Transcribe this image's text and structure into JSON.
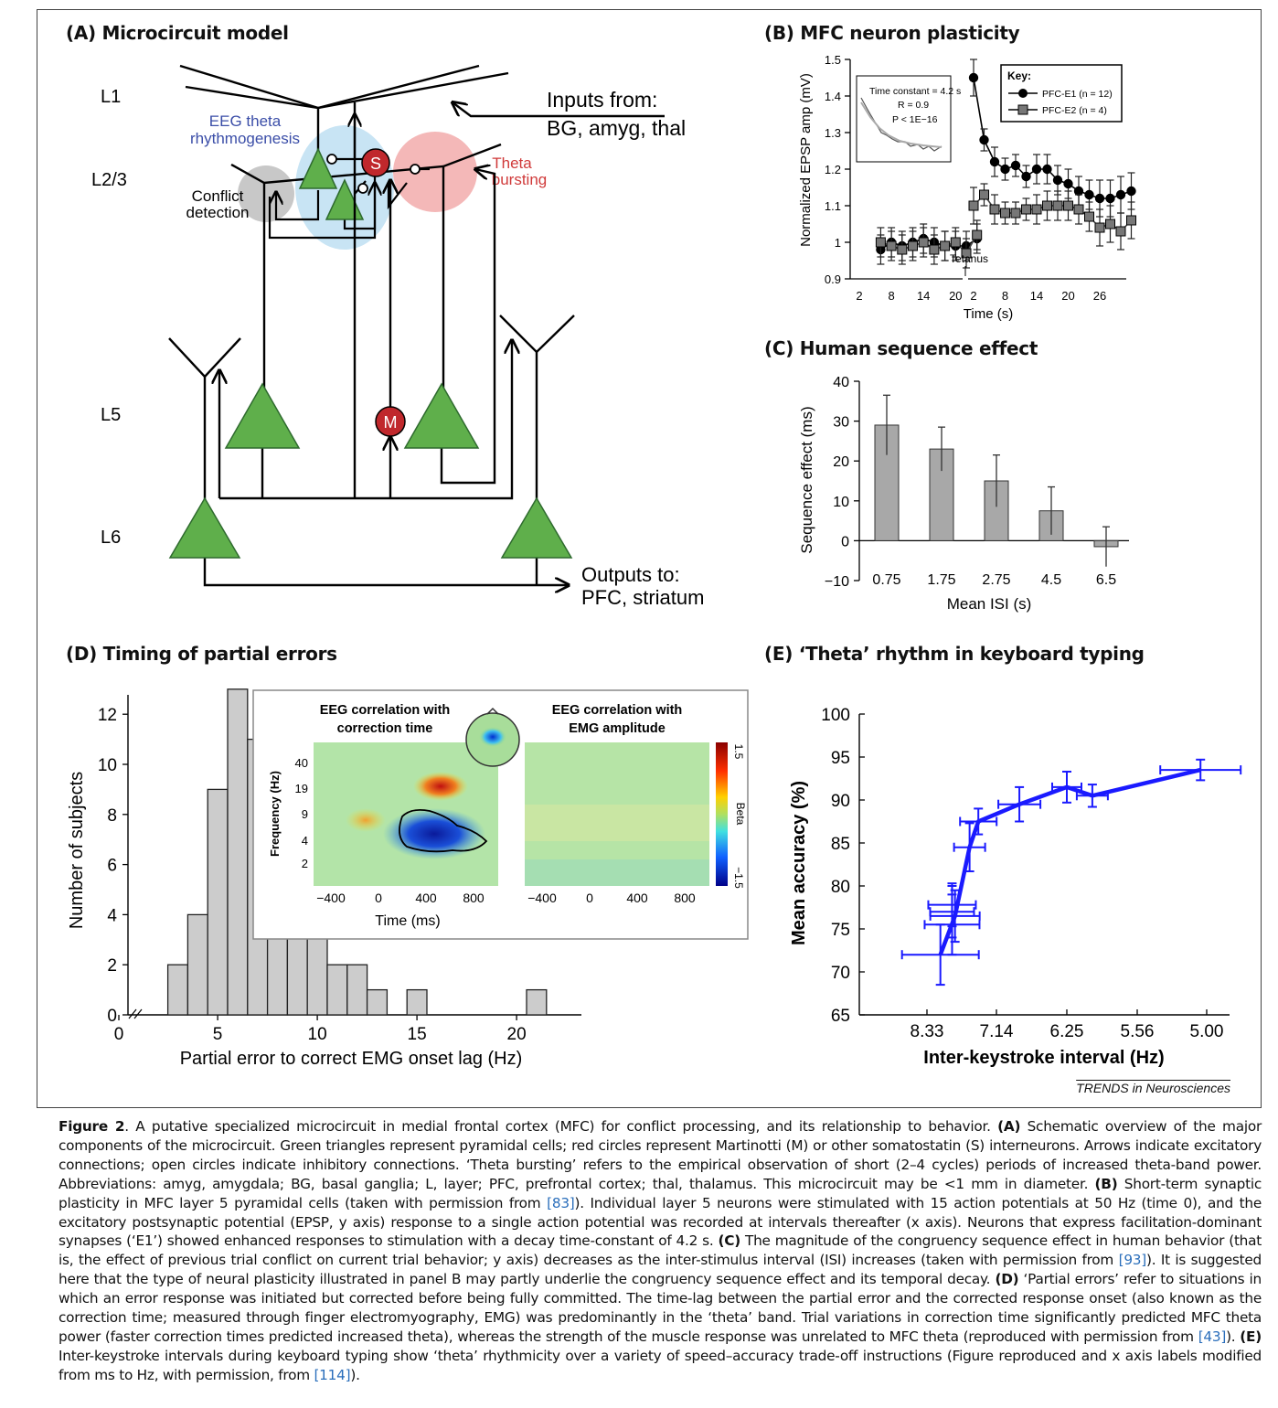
{
  "panels": {
    "a": {
      "title": "(A) Microcircuit model",
      "layers": [
        "L1",
        "L2/3",
        "L5",
        "L6"
      ],
      "inputs_line1": "Inputs from:",
      "inputs_line2": "BG, amyg, thal",
      "eeg_line1": "EEG theta",
      "eeg_line2": "rhythmogenesis",
      "theta_line1": "Theta",
      "theta_line2": "bursting",
      "conflict_line1": "Conflict",
      "conflict_line2": "detection",
      "s_label": "S",
      "m_label": "M",
      "outputs_line1": "Outputs to:",
      "outputs_line2": "PFC, striatum"
    },
    "b": {
      "title": "(B) MFC neuron plasticity"
    },
    "c": {
      "title": "(C) Human sequence effect"
    },
    "d": {
      "title": "(D) Timing of partial errors"
    },
    "e": {
      "title": "(E) ‘Theta’ rhythm in keyboard typing"
    }
  },
  "colors": {
    "pyramidal": "#5faf4b",
    "interneuron": "#c0282c",
    "eeg_region": "#c8e4f4",
    "theta_region": "#f4b8b8",
    "conflict_region": "#c8c8c8",
    "eeg_text": "#3b4ea8",
    "theta_text": "#d03a3a",
    "line_e": "#1a1aff",
    "bar_gray": "#a8a8a8",
    "hist_gray": "#cccccc"
  },
  "chart_data": [
    {
      "id": "B",
      "type": "line",
      "xlabel": "Time (s)",
      "ylabel": "Normalized EPSP amp (mV)",
      "ylim": [
        0.9,
        1.5
      ],
      "yticks": [
        "0.9",
        "1",
        "1.1",
        "1.2",
        "1.3",
        "1.4",
        "1.5"
      ],
      "xticks_pre": [
        "2",
        "8",
        "14",
        "20"
      ],
      "xticks_post": [
        "2",
        "8",
        "14",
        "20",
        "26"
      ],
      "annotation": "Tetanus",
      "legend_title": "Key:",
      "legend": [
        "PFC-E1 (n = 12)",
        "PFC-E2 (n = 4)"
      ],
      "inset_text": [
        "Time constant = 4.2 s",
        "R = 0.9",
        "P < 1E−16"
      ],
      "series": [
        {
          "name": "PFC-E1 (n = 12)",
          "pre": [
            0.98,
            1.0,
            0.99,
            1.0,
            1.01,
            1.0,
            0.99,
            0.99,
            0.99,
            1.01
          ],
          "post": [
            1.45,
            1.28,
            1.22,
            1.2,
            1.21,
            1.18,
            1.2,
            1.2,
            1.17,
            1.16,
            1.14,
            1.13,
            1.12,
            1.12,
            1.13,
            1.14
          ]
        },
        {
          "name": "PFC-E2 (n = 4)",
          "pre": [
            1.0,
            0.99,
            0.98,
            0.99,
            1.0,
            0.98,
            0.99,
            1.0,
            0.97,
            1.02
          ],
          "post": [
            1.1,
            1.13,
            1.09,
            1.08,
            1.08,
            1.09,
            1.09,
            1.1,
            1.1,
            1.1,
            1.09,
            1.07,
            1.04,
            1.05,
            1.03,
            1.06
          ]
        }
      ]
    },
    {
      "id": "C",
      "type": "bar",
      "xlabel": "Mean ISI (s)",
      "ylabel": "Sequence effect (ms)",
      "categories": [
        "0.75",
        "1.75",
        "2.75",
        "4.5",
        "6.5"
      ],
      "values": [
        29,
        23,
        15,
        7.5,
        -1.5
      ],
      "errors": [
        7.5,
        5.5,
        6.5,
        6,
        5
      ],
      "ylim": [
        -10,
        40
      ],
      "yticks": [
        "−10",
        "0",
        "10",
        "20",
        "30",
        "40"
      ]
    },
    {
      "id": "D",
      "type": "bar",
      "xlabel": "Partial error to correct EMG onset lag (Hz)",
      "ylabel": "Number of subjects",
      "bins": [
        3,
        4,
        5,
        6,
        7,
        8,
        9,
        10,
        11,
        12,
        13,
        15,
        21
      ],
      "counts": [
        2,
        4,
        9,
        13,
        11,
        9,
        6,
        4,
        2,
        2,
        1,
        1,
        1
      ],
      "xticks": [
        "0",
        "5",
        "10",
        "15",
        "20"
      ],
      "yticks": [
        "0",
        "2",
        "4",
        "6",
        "8",
        "10",
        "12"
      ]
    },
    {
      "id": "D-inset",
      "type": "heatmap",
      "titles": [
        [
          "EEG correlation with",
          "correction time"
        ],
        [
          "EEG correlation with",
          "EMG amplitude"
        ]
      ],
      "ylabel": "Frequency (Hz)",
      "yticks": [
        "40",
        "19",
        "9",
        "4",
        "2"
      ],
      "xticks": [
        "−400",
        "0",
        "400",
        "800"
      ],
      "xlabel": "Time (ms)",
      "colorbar_label": "Beta",
      "colorbar_range": [
        "1.5",
        "−1.5"
      ]
    },
    {
      "id": "E",
      "type": "line",
      "xlabel": "Inter-keystroke interval (Hz)",
      "ylabel": "Mean accuracy (%)",
      "ylim": [
        65,
        100
      ],
      "yticks": [
        "65",
        "70",
        "75",
        "80",
        "85",
        "90",
        "95",
        "100"
      ],
      "xticks": [
        "8.33",
        "7.14",
        "6.25",
        "5.56",
        "5.00"
      ],
      "points": [
        [
          8.1,
          72
        ],
        [
          7.9,
          75.5
        ],
        [
          7.85,
          76.5
        ],
        [
          7.9,
          77
        ],
        [
          7.9,
          77.8
        ],
        [
          7.6,
          84.5
        ],
        [
          7.45,
          87.5
        ],
        [
          6.85,
          89.5
        ],
        [
          6.25,
          91.5
        ],
        [
          6.0,
          90.5
        ],
        [
          5.05,
          93.5
        ]
      ]
    }
  ],
  "caption": {
    "label": "Figure 2",
    "intro": ". A putative specialized microcircuit in medial frontal cortex (MFC) for conflict processing, and its relationship to behavior. ",
    "a_head": "(A)",
    "a_text": " Schematic overview of the major components of the microcircuit. Green triangles represent pyramidal cells; red circles represent Martinotti (M) or other somatostatin (S) interneurons. Arrows indicate excitatory connections; open circles indicate inhibitory connections. ‘Theta bursting’ refers to the empirical observation of short (2–4 cycles) periods of increased theta-band power. Abbreviations: amyg, amygdala; BG, basal ganglia; L, layer; PFC, prefrontal cortex; thal, thalamus. This microcircuit may be <1 mm in diameter. ",
    "b_head": "(B)",
    "b_text1": " Short-term synaptic plasticity in MFC layer 5 pyramidal cells (taken with permission from ",
    "ref83": "[83]",
    "b_text2": "). Individual layer 5 neurons were stimulated with 15 action potentials at 50 Hz (time 0), and the excitatory postsynaptic potential (EPSP, y axis) response to a single action potential was recorded at intervals thereafter (x axis). Neurons that express facilitation-dominant synapses (‘E1’) showed enhanced responses to stimulation with a decay time-constant of 4.2 s. ",
    "c_head": "(C)",
    "c_text1": " The magnitude of the congruency sequence effect in human behavior (that is, the effect of previous trial conflict on current trial behavior; y axis) decreases as the inter-stimulus interval (ISI) increases (taken with permission from ",
    "ref93": "[93]",
    "c_text2": "). It is suggested here that the type of neural plasticity illustrated in panel B may partly underlie the congruency sequence effect and its temporal decay. ",
    "d_head": "(D)",
    "d_text1": " ‘Partial errors’ refer to situations in which an error response was initiated but corrected before being fully committed. The time-lag between the partial error and the corrected response onset (also known as the correction time; measured through finger electromyography, EMG) was predominantly in the ‘theta’ band. Trial variations in correction time significantly predicted MFC theta power (faster correction times predicted increased theta), whereas the strength of the muscle response was unrelated to MFC theta (reproduced with permission from ",
    "ref43": "[43]",
    "d_text2": "). ",
    "e_head": "(E)",
    "e_text1": " Inter-keystroke intervals during keyboard typing show ‘theta’ rhythmicity over a variety of speed–accuracy trade-off instructions (Figure reproduced and x axis labels modified from ms to Hz, with permission, from ",
    "ref114": "[114]",
    "e_text2": ")."
  },
  "credit": "TRENDS in Neurosciences"
}
